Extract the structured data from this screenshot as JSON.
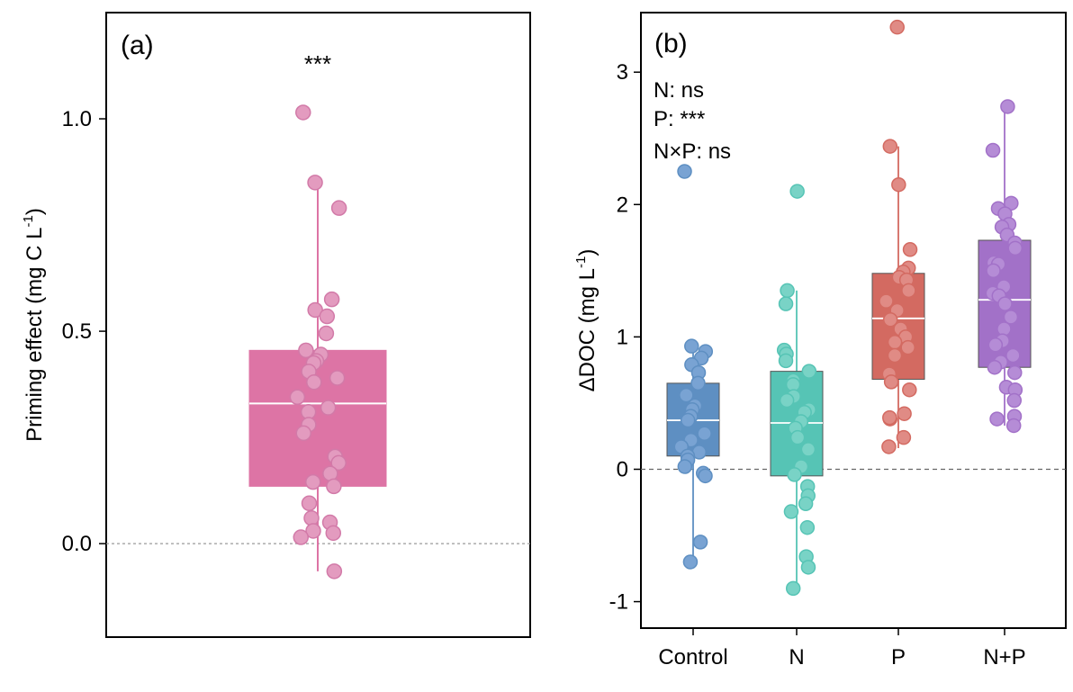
{
  "chart_data": [
    {
      "type": "box",
      "panel_label": "(a)",
      "ylabel": "Priming effect (mg C L",
      "ylabel_sup": "-1",
      "ylabel_tail": ")",
      "ylim": [
        -0.22,
        1.25
      ],
      "yticks": [
        "0.0",
        "0.5",
        "1.0"
      ],
      "ytick_values": [
        0.0,
        0.5,
        1.0
      ],
      "significance": "***",
      "reference_line": 0,
      "color": "#dd74a5",
      "point_color": "#e39bbf",
      "box": {
        "q1": 0.135,
        "median": 0.33,
        "q3": 0.455,
        "whisker_low": -0.065,
        "whisker_high": 0.85
      },
      "points": [
        1.015,
        0.85,
        0.79,
        0.575,
        0.55,
        0.535,
        0.495,
        0.455,
        0.445,
        0.43,
        0.425,
        0.405,
        0.39,
        0.38,
        0.345,
        0.32,
        0.31,
        0.28,
        0.26,
        0.205,
        0.19,
        0.165,
        0.145,
        0.135,
        0.095,
        0.06,
        0.05,
        0.03,
        0.025,
        0.015,
        -0.065
      ]
    },
    {
      "type": "box",
      "panel_label": "(b)",
      "ylabel": "ΔDOC (mg  L",
      "ylabel_sup": "-1",
      "ylabel_tail": ")",
      "ylim": [
        -1.2,
        3.45
      ],
      "yticks": [
        "-1",
        "0",
        "1",
        "2",
        "3"
      ],
      "ytick_values": [
        -1,
        0,
        1,
        2,
        3
      ],
      "categories": [
        "Control",
        "N",
        "P",
        "N+P"
      ],
      "annotations": [
        "N: ns",
        "P: ***",
        "N×P: ns"
      ],
      "reference_line": 0,
      "series": [
        {
          "category": "Control",
          "color": "#5e8fc2",
          "point_color": "#79a3d3",
          "box": {
            "q1": 0.1,
            "median": 0.37,
            "q3": 0.65,
            "whisker_low": -0.7,
            "whisker_high": 0.93
          },
          "points": [
            2.25,
            0.93,
            0.89,
            0.84,
            0.79,
            0.73,
            0.65,
            0.56,
            0.48,
            0.45,
            0.4,
            0.37,
            0.27,
            0.22,
            0.17,
            0.13,
            0.1,
            0.07,
            0.02,
            -0.03,
            -0.05,
            -0.55,
            -0.7
          ]
        },
        {
          "category": "N",
          "color": "#56c4b5",
          "point_color": "#79d3c6",
          "box": {
            "q1": -0.05,
            "median": 0.35,
            "q3": 0.74,
            "whisker_low": -0.9,
            "whisker_high": 1.35
          },
          "points": [
            2.1,
            1.35,
            1.25,
            0.9,
            0.87,
            0.82,
            0.74,
            0.67,
            0.64,
            0.55,
            0.52,
            0.45,
            0.43,
            0.36,
            0.31,
            0.24,
            0.15,
            0.02,
            -0.04,
            -0.13,
            -0.2,
            -0.26,
            -0.32,
            -0.44,
            -0.66,
            -0.74,
            -0.9
          ]
        },
        {
          "category": "P",
          "color": "#d36a61",
          "point_color": "#e08b85",
          "box": {
            "q1": 0.68,
            "median": 1.14,
            "q3": 1.48,
            "whisker_low": 0.16,
            "whisker_high": 2.44
          },
          "points": [
            3.34,
            2.44,
            2.15,
            1.66,
            1.52,
            1.49,
            1.45,
            1.43,
            1.35,
            1.27,
            1.2,
            1.13,
            1.06,
            1.0,
            0.96,
            0.92,
            0.86,
            0.72,
            0.66,
            0.6,
            0.42,
            0.38,
            0.39,
            0.24,
            0.17
          ]
        },
        {
          "category": "N+P",
          "color": "#a271c8",
          "point_color": "#b58cd6",
          "box": {
            "q1": 0.77,
            "median": 1.28,
            "q3": 1.73,
            "whisker_low": 0.33,
            "whisker_high": 2.74
          },
          "points": [
            2.74,
            2.41,
            2.01,
            1.97,
            1.93,
            1.85,
            1.83,
            1.77,
            1.71,
            1.67,
            1.56,
            1.55,
            1.5,
            1.38,
            1.33,
            1.31,
            1.25,
            1.15,
            1.06,
            0.97,
            0.94,
            0.86,
            0.81,
            0.77,
            0.73,
            0.62,
            0.6,
            0.52,
            0.4,
            0.38,
            0.33
          ]
        }
      ]
    }
  ]
}
